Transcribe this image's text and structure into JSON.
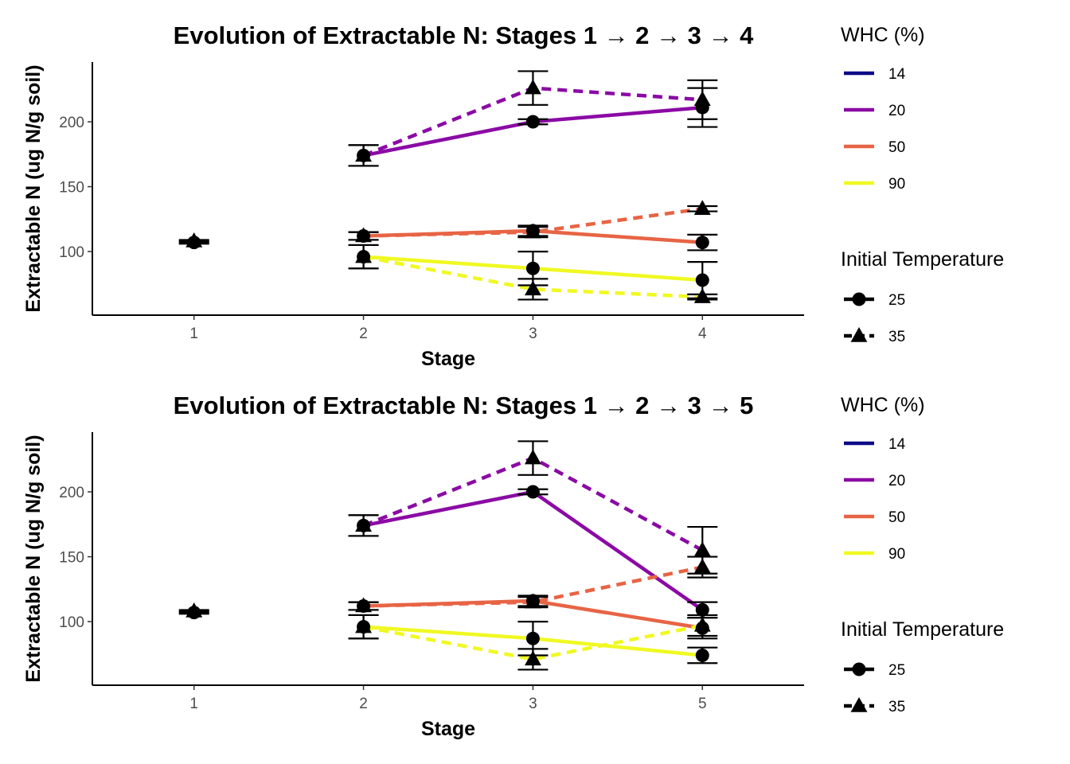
{
  "chart_data": [
    {
      "type": "line",
      "title": "Evolution of Extractable N: Stages 1 → 2 → 3 → 4",
      "xlabel": "Stage",
      "ylabel": "Extractable N (ug N/g soil)",
      "categories": [
        "1",
        "2",
        "3",
        "4"
      ],
      "ylim": [
        51,
        246
      ],
      "yticks": [
        100,
        150,
        200
      ],
      "grid": false,
      "series": [
        {
          "name": "WHC 20, 25 °C",
          "whc": "20",
          "temp": "25",
          "x": [
            "2",
            "3",
            "4"
          ],
          "values": [
            174,
            200,
            211
          ],
          "err": [
            8,
            2,
            15
          ]
        },
        {
          "name": "WHC 20, 35 °C",
          "whc": "20",
          "temp": "35",
          "x": [
            "2",
            "3",
            "4"
          ],
          "values": [
            174,
            226,
            217
          ],
          "err": [
            8,
            13,
            15
          ]
        },
        {
          "name": "WHC 50, 25 °C",
          "whc": "50",
          "temp": "25",
          "x": [
            "2",
            "3",
            "4"
          ],
          "values": [
            112,
            116,
            107
          ],
          "err": [
            3,
            4,
            6
          ]
        },
        {
          "name": "WHC 50, 35 °C",
          "whc": "50",
          "temp": "35",
          "x": [
            "2",
            "3",
            "4"
          ],
          "values": [
            112,
            115,
            133
          ],
          "err": [
            3,
            4,
            2
          ]
        },
        {
          "name": "WHC 90, 25 °C",
          "whc": "90",
          "temp": "25",
          "x": [
            "2",
            "3",
            "4"
          ],
          "values": [
            96,
            87,
            78
          ],
          "err": [
            9,
            13,
            14
          ]
        },
        {
          "name": "WHC 90, 35 °C",
          "whc": "90",
          "temp": "35",
          "x": [
            "2",
            "3",
            "4"
          ],
          "values": [
            96,
            71,
            65
          ],
          "err": [
            9,
            8,
            2
          ]
        },
        {
          "name": "Stage 1, 25 °C",
          "whc": "",
          "temp": "25",
          "x": [
            "1"
          ],
          "values": [
            107
          ],
          "err": [
            1
          ]
        },
        {
          "name": "Stage 1, 35 °C",
          "whc": "",
          "temp": "35",
          "x": [
            "1"
          ],
          "values": [
            108
          ],
          "err": [
            1
          ]
        }
      ]
    },
    {
      "type": "line",
      "title": "Evolution of Extractable N: Stages 1 → 2 → 3 → 5",
      "xlabel": "Stage",
      "ylabel": "Extractable N (ug N/g soil)",
      "categories": [
        "1",
        "2",
        "3",
        "5"
      ],
      "ylim": [
        51,
        246
      ],
      "yticks": [
        100,
        150,
        200
      ],
      "grid": false,
      "series": [
        {
          "name": "WHC 20, 25 °C",
          "whc": "20",
          "temp": "25",
          "x": [
            "2",
            "3",
            "5"
          ],
          "values": [
            174,
            200,
            109
          ],
          "err": [
            8,
            2,
            6
          ]
        },
        {
          "name": "WHC 20, 35 °C",
          "whc": "20",
          "temp": "35",
          "x": [
            "2",
            "3",
            "5"
          ],
          "values": [
            174,
            226,
            155
          ],
          "err": [
            8,
            13,
            18
          ]
        },
        {
          "name": "WHC 50, 25 °C",
          "whc": "50",
          "temp": "25",
          "x": [
            "2",
            "3",
            "5"
          ],
          "values": [
            112,
            116,
            95
          ],
          "err": [
            3,
            4,
            8
          ]
        },
        {
          "name": "WHC 50, 35 °C",
          "whc": "50",
          "temp": "35",
          "x": [
            "2",
            "3",
            "5"
          ],
          "values": [
            112,
            115,
            142
          ],
          "err": [
            3,
            4,
            8
          ]
        },
        {
          "name": "WHC 90, 25 °C",
          "whc": "90",
          "temp": "25",
          "x": [
            "2",
            "3",
            "5"
          ],
          "values": [
            96,
            87,
            74
          ],
          "err": [
            9,
            13,
            6
          ]
        },
        {
          "name": "WHC 90, 35 °C",
          "whc": "90",
          "temp": "35",
          "x": [
            "2",
            "3",
            "5"
          ],
          "values": [
            96,
            71,
            97
          ],
          "err": [
            9,
            8,
            8
          ]
        },
        {
          "name": "Stage 1, 25 °C",
          "whc": "",
          "temp": "25",
          "x": [
            "1"
          ],
          "values": [
            107
          ],
          "err": [
            1
          ]
        },
        {
          "name": "Stage 1, 35 °C",
          "whc": "",
          "temp": "35",
          "x": [
            "1"
          ],
          "values": [
            108
          ],
          "err": [
            1
          ]
        }
      ]
    }
  ],
  "legend": {
    "whc_title": "WHC (%)",
    "whc_items": [
      {
        "label": "14",
        "color": "#0D0887"
      },
      {
        "label": "20",
        "color": "#8B0AA5"
      },
      {
        "label": "50",
        "color": "#E76445"
      },
      {
        "label": "90",
        "color": "#F0F921"
      }
    ],
    "temp_title": "Initial Temperature",
    "temp_items": [
      {
        "label": "25",
        "shape": "circle",
        "linetype": "solid"
      },
      {
        "label": "35",
        "shape": "triangle",
        "linetype": "dashed"
      }
    ]
  }
}
